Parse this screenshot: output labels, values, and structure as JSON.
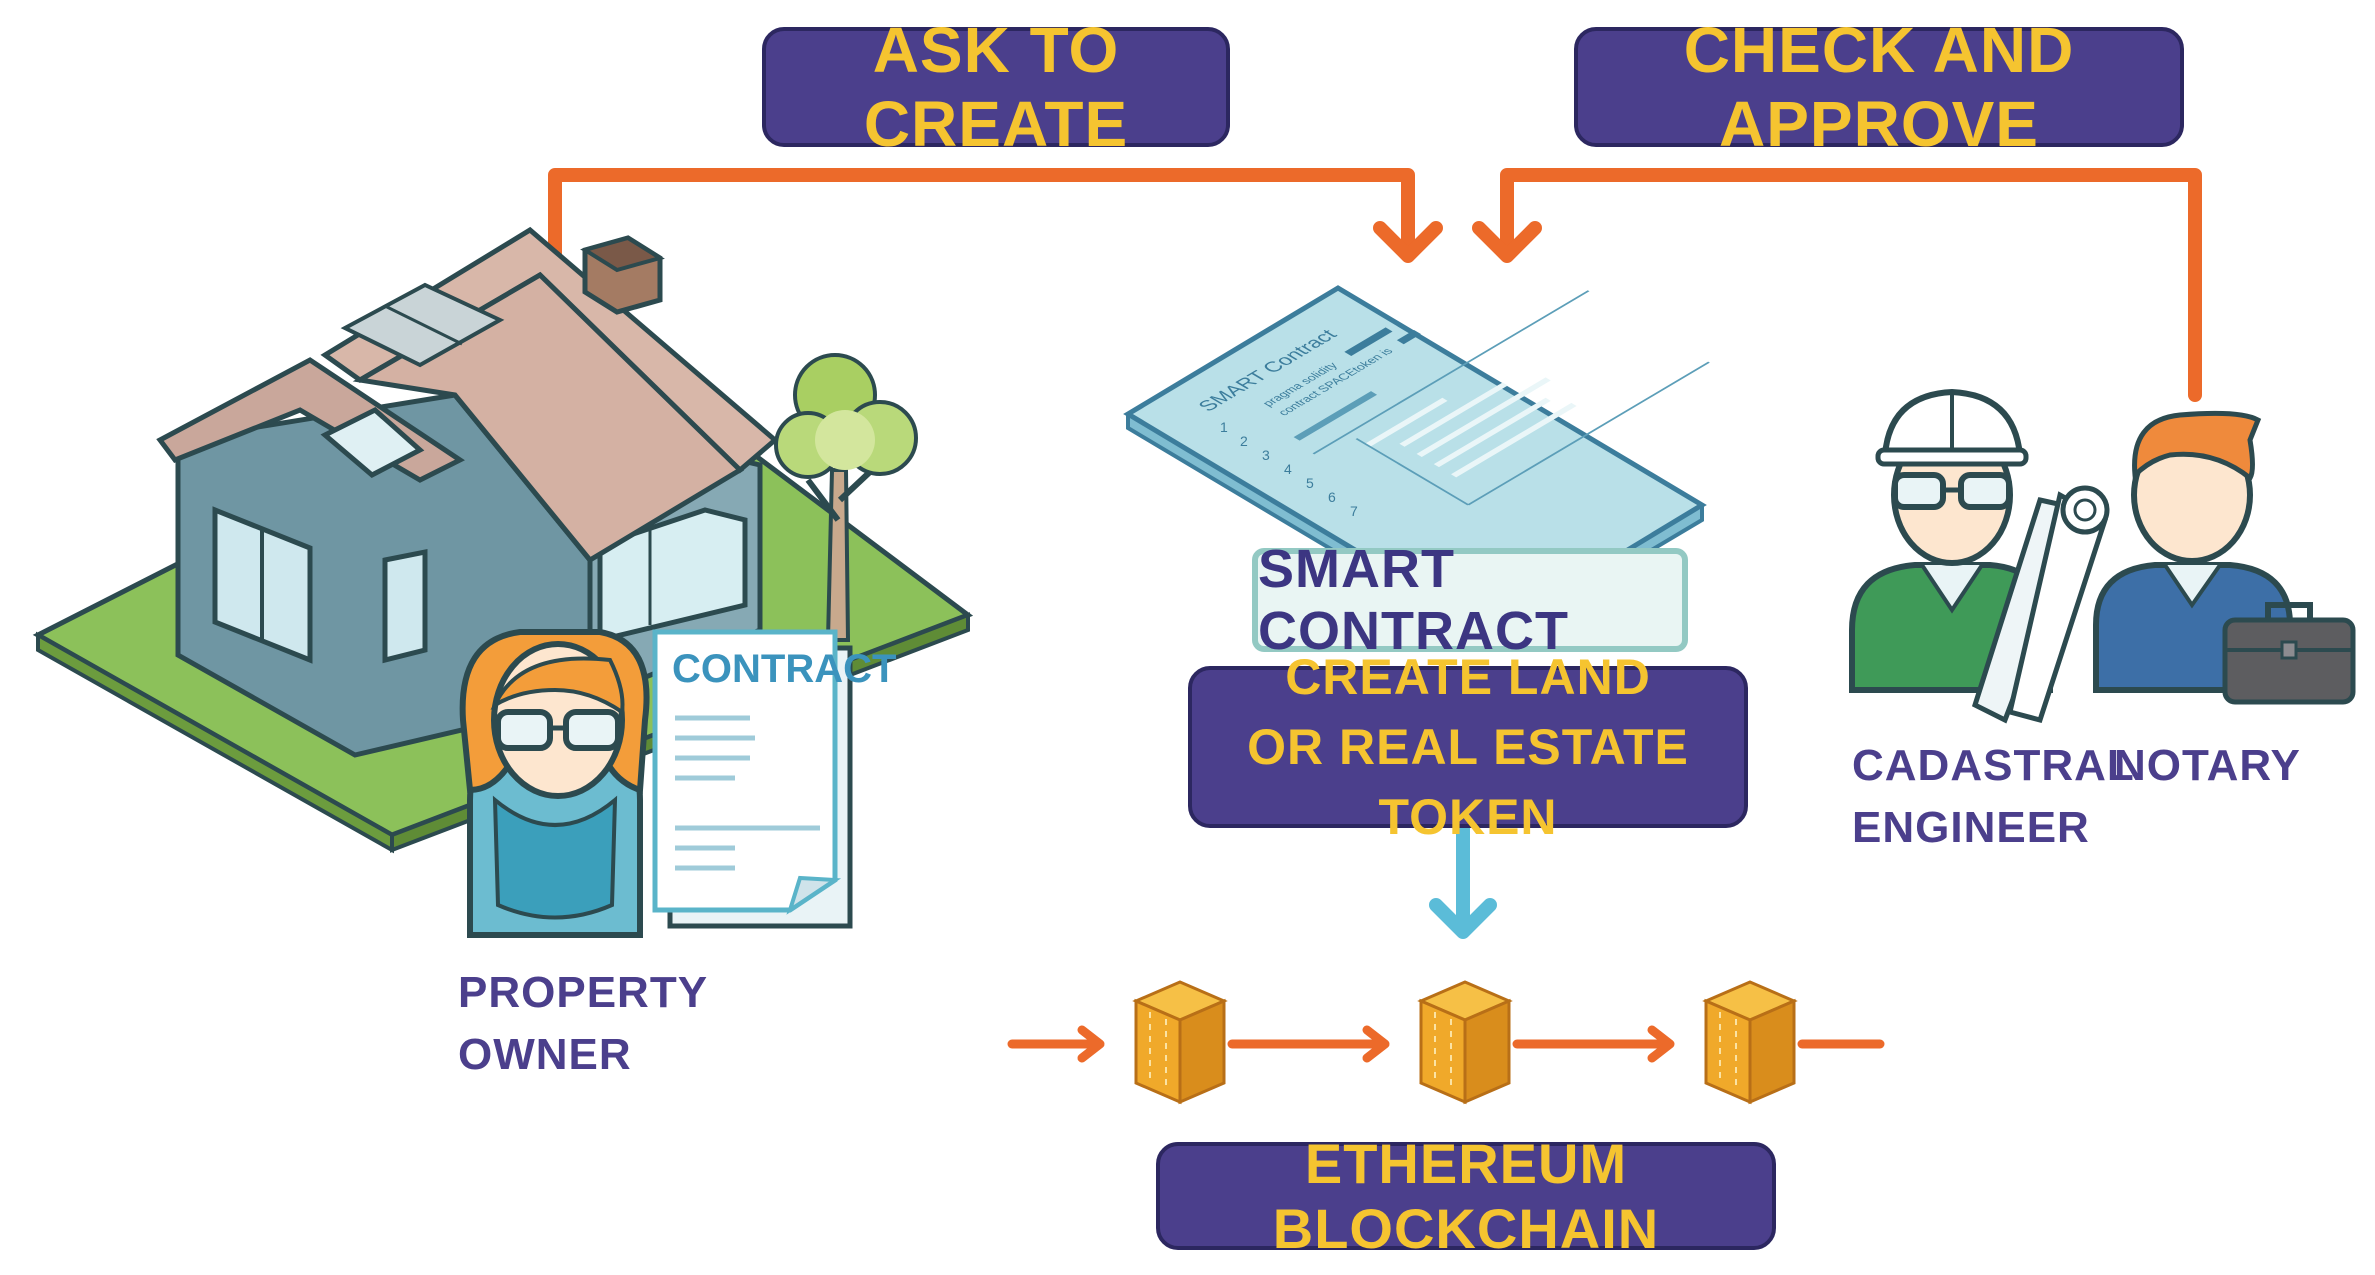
{
  "labels": {
    "ask_to_create": "ASK TO CREATE",
    "check_and_approve": "CHECK AND APPROVE",
    "smart_contract": "SMART CONTRACT",
    "create_token_line1": "CREATE LAND",
    "create_token_line2": "OR REAL ESTATE TOKEN",
    "ethereum_blockchain": "ETHEREUM BLOCKCHAIN"
  },
  "document": {
    "contract_title": "CONTRACT"
  },
  "smart_contract_sheet": {
    "title": "SMART  Contract",
    "code_line1": "pragma solidity",
    "code_line2": "contract SPACEtoken is",
    "line_numbers": [
      "1",
      "2",
      "3",
      "4",
      "5",
      "6",
      "7"
    ]
  },
  "actors": {
    "owner_line1": "PROPERTY",
    "owner_line2": "OWNER",
    "engineer_line1": "CADASTRAL",
    "engineer_line2": "ENGINEER",
    "notary": "NOTARY"
  },
  "colors": {
    "badge_bg": "#4b3f8c",
    "badge_text": "#f5c430",
    "arrow_orange": "#ec6a2a",
    "arrow_blue": "#5bbcd8",
    "block_gold": "#f0a92a"
  },
  "icons": [
    "house-icon",
    "tree-icon",
    "property-owner-icon",
    "contract-document-icon",
    "smart-contract-sheet-icon",
    "cadastral-engineer-icon",
    "notary-icon",
    "blueprint-roll-icon",
    "briefcase-icon",
    "block-icon"
  ]
}
